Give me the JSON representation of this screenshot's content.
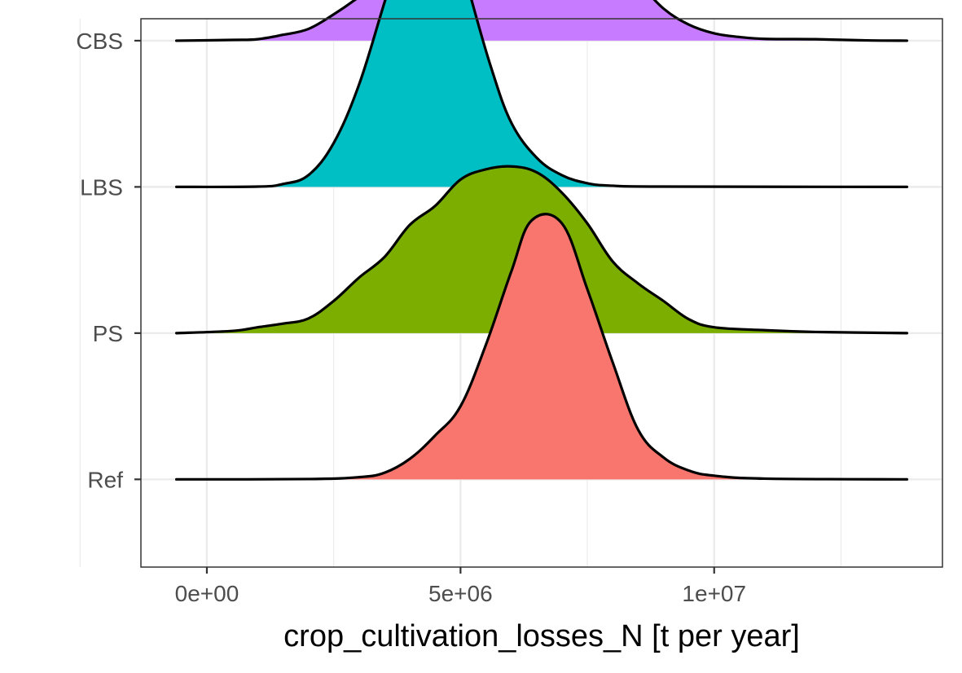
{
  "chart_data": {
    "type": "ridgeline",
    "xlabel": "crop_cultivation_losses_N [t per year]",
    "ylabel": "",
    "title": "",
    "x_ticks": [
      {
        "value": 0,
        "label": "0e+00"
      },
      {
        "value": 5000000,
        "label": "5e+06"
      },
      {
        "value": 10000000,
        "label": "1e+07"
      }
    ],
    "x_minor_gridlines": [
      -2500000,
      2500000,
      7500000,
      12500000
    ],
    "xlim": [
      -1300000,
      14500000
    ],
    "ylim": [
      0.4,
      4.15
    ],
    "grid": true,
    "legend": "none",
    "categories": [
      "Ref",
      "PS",
      "LBS",
      "CBS"
    ],
    "density_scale_note": "y values are ridge heights in category-row units above each baseline",
    "series": [
      {
        "name": "CBS",
        "baseline": 4,
        "color": "#C77CFF",
        "density": [
          [
            -600000,
            0.0
          ],
          [
            500000,
            0.005
          ],
          [
            1000000,
            0.01
          ],
          [
            1500000,
            0.04
          ],
          [
            2000000,
            0.08
          ],
          [
            2500000,
            0.18
          ],
          [
            3000000,
            0.3
          ],
          [
            3500000,
            0.44
          ],
          [
            4000000,
            0.62
          ],
          [
            4500000,
            0.82
          ],
          [
            5000000,
            1.0
          ],
          [
            5500000,
            1.12
          ],
          [
            6000000,
            1.17
          ],
          [
            6500000,
            1.1
          ],
          [
            7000000,
            0.93
          ],
          [
            7500000,
            0.72
          ],
          [
            8000000,
            0.56
          ],
          [
            8500000,
            0.4
          ],
          [
            9000000,
            0.22
          ],
          [
            9500000,
            0.11
          ],
          [
            10000000,
            0.05
          ],
          [
            10500000,
            0.025
          ],
          [
            11000000,
            0.012
          ],
          [
            12000000,
            0.01
          ],
          [
            13000000,
            0.002
          ],
          [
            13800000,
            0.0
          ]
        ]
      },
      {
        "name": "LBS",
        "baseline": 3,
        "color": "#00BFC4",
        "density": [
          [
            -600000,
            0.0
          ],
          [
            1000000,
            0.002
          ],
          [
            1500000,
            0.02
          ],
          [
            2000000,
            0.08
          ],
          [
            2500000,
            0.3
          ],
          [
            3000000,
            0.7
          ],
          [
            3500000,
            1.26
          ],
          [
            4000000,
            1.82
          ],
          [
            4400000,
            1.98
          ],
          [
            4800000,
            1.82
          ],
          [
            5200000,
            1.3
          ],
          [
            5600000,
            0.82
          ],
          [
            6000000,
            0.44
          ],
          [
            6500000,
            0.2
          ],
          [
            7000000,
            0.08
          ],
          [
            7500000,
            0.025
          ],
          [
            8000000,
            0.008
          ],
          [
            9000000,
            0.002
          ],
          [
            13800000,
            0.0
          ]
        ]
      },
      {
        "name": "PS",
        "baseline": 2,
        "color": "#7CAE00",
        "density": [
          [
            -600000,
            0.0
          ],
          [
            500000,
            0.015
          ],
          [
            1000000,
            0.04
          ],
          [
            1500000,
            0.065
          ],
          [
            2000000,
            0.1
          ],
          [
            2500000,
            0.22
          ],
          [
            3000000,
            0.38
          ],
          [
            3500000,
            0.52
          ],
          [
            4000000,
            0.74
          ],
          [
            4500000,
            0.87
          ],
          [
            5000000,
            1.05
          ],
          [
            5500000,
            1.12
          ],
          [
            6000000,
            1.14
          ],
          [
            6500000,
            1.1
          ],
          [
            7000000,
            0.96
          ],
          [
            7500000,
            0.75
          ],
          [
            8000000,
            0.49
          ],
          [
            8500000,
            0.34
          ],
          [
            9000000,
            0.22
          ],
          [
            9500000,
            0.095
          ],
          [
            10000000,
            0.04
          ],
          [
            11000000,
            0.02
          ],
          [
            12000000,
            0.008
          ],
          [
            13800000,
            0.0
          ]
        ]
      },
      {
        "name": "Ref",
        "baseline": 1,
        "color": "#F8766D",
        "density": [
          [
            -600000,
            0.0
          ],
          [
            2000000,
            0.002
          ],
          [
            3000000,
            0.015
          ],
          [
            3500000,
            0.045
          ],
          [
            4000000,
            0.14
          ],
          [
            4500000,
            0.3
          ],
          [
            5000000,
            0.5
          ],
          [
            5500000,
            0.92
          ],
          [
            6000000,
            1.42
          ],
          [
            6400000,
            1.77
          ],
          [
            7000000,
            1.75
          ],
          [
            7500000,
            1.3
          ],
          [
            8000000,
            0.8
          ],
          [
            8500000,
            0.34
          ],
          [
            9000000,
            0.15
          ],
          [
            9500000,
            0.06
          ],
          [
            10000000,
            0.025
          ],
          [
            11000000,
            0.005
          ],
          [
            13800000,
            0.0
          ]
        ]
      }
    ]
  }
}
